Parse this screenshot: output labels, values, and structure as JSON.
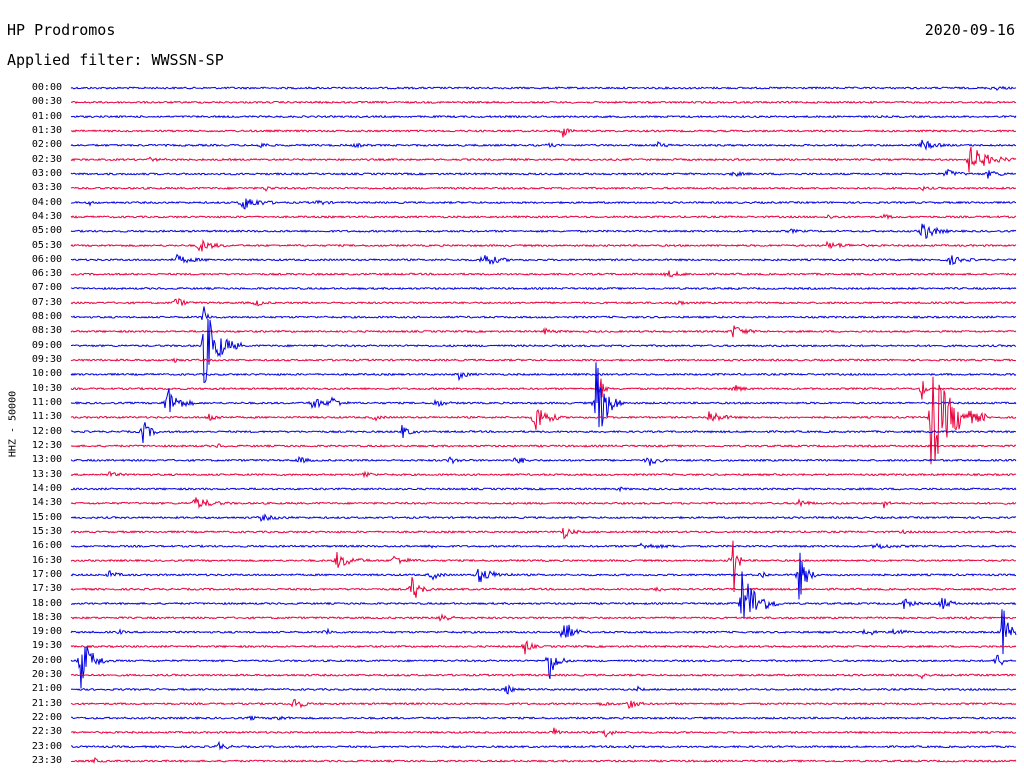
{
  "header": {
    "station": "HP Prodromos",
    "date": "2020-09-16",
    "filter": "Applied filter: WWSSN-SP"
  },
  "channel_label": "HHZ - 50000",
  "colors": {
    "blue": "#0000e0",
    "red": "#e8003c"
  },
  "rows": [
    {
      "label": "00:00",
      "events": [
        {
          "t": 0.975,
          "amp": 3,
          "dur": 0.02
        }
      ]
    },
    {
      "label": "00:30",
      "events": []
    },
    {
      "label": "01:00",
      "events": []
    },
    {
      "label": "01:30",
      "events": [
        {
          "t": 0.52,
          "amp": 7,
          "dur": 0.015
        }
      ]
    },
    {
      "label": "02:00",
      "events": [
        {
          "t": 0.2,
          "amp": 4,
          "dur": 0.015
        },
        {
          "t": 0.3,
          "amp": 2,
          "dur": 0.02
        },
        {
          "t": 0.505,
          "amp": 2,
          "dur": 0.015
        },
        {
          "t": 0.62,
          "amp": 3,
          "dur": 0.02
        },
        {
          "t": 0.9,
          "amp": 6,
          "dur": 0.03
        }
      ]
    },
    {
      "label": "02:30",
      "events": [
        {
          "t": 0.082,
          "amp": 2,
          "dur": 0.02
        },
        {
          "t": 0.95,
          "amp": 15,
          "dur": 0.05
        }
      ]
    },
    {
      "label": "03:00",
      "events": [
        {
          "t": 0.7,
          "amp": 3,
          "dur": 0.02
        },
        {
          "t": 0.925,
          "amp": 5,
          "dur": 0.03
        },
        {
          "t": 0.97,
          "amp": 4,
          "dur": 0.03
        }
      ]
    },
    {
      "label": "03:30",
      "events": [
        {
          "t": 0.205,
          "amp": 3,
          "dur": 0.015
        },
        {
          "t": 0.9,
          "amp": 2,
          "dur": 0.015
        }
      ]
    },
    {
      "label": "04:00",
      "events": [
        {
          "t": 0.02,
          "amp": 2,
          "dur": 0.01
        },
        {
          "t": 0.18,
          "amp": 9,
          "dur": 0.04
        },
        {
          "t": 0.26,
          "amp": 3,
          "dur": 0.02
        }
      ]
    },
    {
      "label": "04:30",
      "events": [
        {
          "t": 0.8,
          "amp": 2,
          "dur": 0.02
        },
        {
          "t": 0.86,
          "amp": 2,
          "dur": 0.02
        }
      ]
    },
    {
      "label": "05:00",
      "events": [
        {
          "t": 0.9,
          "amp": 12,
          "dur": 0.03
        },
        {
          "t": 0.76,
          "amp": 2,
          "dur": 0.02
        }
      ]
    },
    {
      "label": "05:30",
      "events": [
        {
          "t": 0.135,
          "amp": 8,
          "dur": 0.03
        },
        {
          "t": 0.8,
          "amp": 3,
          "dur": 0.05
        }
      ]
    },
    {
      "label": "06:00",
      "events": [
        {
          "t": 0.11,
          "amp": 5,
          "dur": 0.04
        },
        {
          "t": 0.435,
          "amp": 10,
          "dur": 0.03
        },
        {
          "t": 0.93,
          "amp": 5,
          "dur": 0.03
        }
      ]
    },
    {
      "label": "06:30",
      "events": [
        {
          "t": 0.63,
          "amp": 4,
          "dur": 0.03
        }
      ]
    },
    {
      "label": "07:00",
      "events": []
    },
    {
      "label": "07:30",
      "events": [
        {
          "t": 0.11,
          "amp": 7,
          "dur": 0.02
        },
        {
          "t": 0.195,
          "amp": 5,
          "dur": 0.015
        },
        {
          "t": 0.64,
          "amp": 4,
          "dur": 0.015
        }
      ]
    },
    {
      "label": "08:00",
      "events": [
        {
          "t": 0.14,
          "amp": 15,
          "dur": 0.01
        }
      ]
    },
    {
      "label": "08:30",
      "events": [
        {
          "t": 0.5,
          "amp": 3,
          "dur": 0.02
        },
        {
          "t": 0.7,
          "amp": 7,
          "dur": 0.03
        }
      ]
    },
    {
      "label": "09:00",
      "events": [
        {
          "t": 0.14,
          "amp": 45,
          "dur": 0.04
        }
      ]
    },
    {
      "label": "09:30",
      "events": [
        {
          "t": 0.11,
          "amp": 3,
          "dur": 0.01
        }
      ]
    },
    {
      "label": "10:00",
      "events": [
        {
          "t": 0.41,
          "amp": 5,
          "dur": 0.02
        }
      ]
    },
    {
      "label": "10:30",
      "events": [
        {
          "t": 0.56,
          "amp": 15,
          "dur": 0.01
        },
        {
          "t": 0.7,
          "amp": 5,
          "dur": 0.02
        },
        {
          "t": 0.9,
          "amp": 14,
          "dur": 0.01
        }
      ]
    },
    {
      "label": "11:00",
      "events": [
        {
          "t": 0.1,
          "amp": 22,
          "dur": 0.03
        },
        {
          "t": 0.255,
          "amp": 8,
          "dur": 0.025
        },
        {
          "t": 0.275,
          "amp": 8,
          "dur": 0.02
        },
        {
          "t": 0.385,
          "amp": 5,
          "dur": 0.02
        },
        {
          "t": 0.555,
          "amp": 50,
          "dur": 0.03
        }
      ]
    },
    {
      "label": "11:30",
      "events": [
        {
          "t": 0.145,
          "amp": 5,
          "dur": 0.02
        },
        {
          "t": 0.32,
          "amp": 4,
          "dur": 0.015
        },
        {
          "t": 0.49,
          "amp": 20,
          "dur": 0.03
        },
        {
          "t": 0.675,
          "amp": 8,
          "dur": 0.03
        },
        {
          "t": 0.91,
          "amp": 55,
          "dur": 0.06
        }
      ]
    },
    {
      "label": "12:00",
      "events": [
        {
          "t": 0.075,
          "amp": 15,
          "dur": 0.02
        },
        {
          "t": 0.35,
          "amp": 7,
          "dur": 0.02
        }
      ]
    },
    {
      "label": "12:30",
      "events": [
        {
          "t": 0.155,
          "amp": 3,
          "dur": 0.01
        }
      ]
    },
    {
      "label": "13:00",
      "events": [
        {
          "t": 0.24,
          "amp": 4,
          "dur": 0.02
        },
        {
          "t": 0.4,
          "amp": 4,
          "dur": 0.02
        },
        {
          "t": 0.47,
          "amp": 6,
          "dur": 0.02
        },
        {
          "t": 0.61,
          "amp": 8,
          "dur": 0.02
        }
      ]
    },
    {
      "label": "13:30",
      "events": [
        {
          "t": 0.04,
          "amp": 3,
          "dur": 0.02
        },
        {
          "t": 0.31,
          "amp": 5,
          "dur": 0.015
        }
      ]
    },
    {
      "label": "14:00",
      "events": [
        {
          "t": 0.58,
          "amp": 2,
          "dur": 0.01
        }
      ]
    },
    {
      "label": "14:30",
      "events": [
        {
          "t": 0.13,
          "amp": 7,
          "dur": 0.04
        },
        {
          "t": 0.77,
          "amp": 5,
          "dur": 0.02
        },
        {
          "t": 0.86,
          "amp": 5,
          "dur": 0.01
        }
      ]
    },
    {
      "label": "15:00",
      "events": [
        {
          "t": 0.2,
          "amp": 3,
          "dur": 0.04
        }
      ]
    },
    {
      "label": "15:30",
      "events": [
        {
          "t": 0.52,
          "amp": 8,
          "dur": 0.02
        },
        {
          "t": 0.88,
          "amp": 2,
          "dur": 0.01
        }
      ]
    },
    {
      "label": "16:00",
      "events": [
        {
          "t": 0.38,
          "amp": 3,
          "dur": 0.01
        },
        {
          "t": 0.6,
          "amp": 3,
          "dur": 0.05
        },
        {
          "t": 0.85,
          "amp": 3,
          "dur": 0.04
        }
      ]
    },
    {
      "label": "16:30",
      "events": [
        {
          "t": 0.28,
          "amp": 9,
          "dur": 0.04
        },
        {
          "t": 0.34,
          "amp": 6,
          "dur": 0.03
        },
        {
          "t": 0.7,
          "amp": 60,
          "dur": 0.01
        }
      ]
    },
    {
      "label": "17:00",
      "events": [
        {
          "t": 0.04,
          "amp": 4,
          "dur": 0.02
        },
        {
          "t": 0.38,
          "amp": 6,
          "dur": 0.02
        },
        {
          "t": 0.43,
          "amp": 9,
          "dur": 0.04
        },
        {
          "t": 0.73,
          "amp": 7,
          "dur": 0.01
        },
        {
          "t": 0.77,
          "amp": 28,
          "dur": 0.02
        }
      ]
    },
    {
      "label": "17:30",
      "events": [
        {
          "t": 0.36,
          "amp": 18,
          "dur": 0.02
        },
        {
          "t": 0.62,
          "amp": 4,
          "dur": 0.01
        }
      ]
    },
    {
      "label": "18:00",
      "events": [
        {
          "t": 0.71,
          "amp": 40,
          "dur": 0.04
        },
        {
          "t": 0.88,
          "amp": 7,
          "dur": 0.02
        },
        {
          "t": 0.92,
          "amp": 10,
          "dur": 0.02
        }
      ]
    },
    {
      "label": "18:30",
      "events": [
        {
          "t": 0.39,
          "amp": 7,
          "dur": 0.02
        },
        {
          "t": 0.95,
          "amp": 3,
          "dur": 0.01
        }
      ]
    },
    {
      "label": "19:00",
      "events": [
        {
          "t": 0.05,
          "amp": 3,
          "dur": 0.01
        },
        {
          "t": 0.27,
          "amp": 7,
          "dur": 0.01
        },
        {
          "t": 0.52,
          "amp": 20,
          "dur": 0.02
        },
        {
          "t": 0.84,
          "amp": 6,
          "dur": 0.02
        },
        {
          "t": 0.87,
          "amp": 7,
          "dur": 0.02
        },
        {
          "t": 0.985,
          "amp": 30,
          "dur": 0.02
        }
      ]
    },
    {
      "label": "19:30",
      "events": [
        {
          "t": 0.48,
          "amp": 9,
          "dur": 0.015
        }
      ]
    },
    {
      "label": "20:00",
      "events": [
        {
          "t": 0.01,
          "amp": 30,
          "dur": 0.03
        },
        {
          "t": 0.505,
          "amp": 25,
          "dur": 0.02
        },
        {
          "t": 0.98,
          "amp": 20,
          "dur": 0.01
        }
      ]
    },
    {
      "label": "20:30",
      "events": [
        {
          "t": 0.9,
          "amp": 3,
          "dur": 0.01
        }
      ]
    },
    {
      "label": "21:00",
      "events": [
        {
          "t": 0.46,
          "amp": 6,
          "dur": 0.015
        },
        {
          "t": 0.6,
          "amp": 2,
          "dur": 0.01
        }
      ]
    },
    {
      "label": "21:30",
      "events": [
        {
          "t": 0.235,
          "amp": 10,
          "dur": 0.02
        },
        {
          "t": 0.56,
          "amp": 3,
          "dur": 0.02
        },
        {
          "t": 0.59,
          "amp": 6,
          "dur": 0.02
        }
      ]
    },
    {
      "label": "22:00",
      "events": [
        {
          "t": 0.19,
          "amp": 3,
          "dur": 0.01
        },
        {
          "t": 0.215,
          "amp": 4,
          "dur": 0.02
        }
      ]
    },
    {
      "label": "22:30",
      "events": [
        {
          "t": 0.51,
          "amp": 5,
          "dur": 0.02
        },
        {
          "t": 0.565,
          "amp": 7,
          "dur": 0.015
        }
      ]
    },
    {
      "label": "23:00",
      "events": [
        {
          "t": 0.155,
          "amp": 5,
          "dur": 0.02
        },
        {
          "t": 0.59,
          "amp": 4,
          "dur": 0.01
        }
      ]
    },
    {
      "label": "23:30",
      "events": [
        {
          "t": 0.025,
          "amp": 3,
          "dur": 0.01
        }
      ]
    }
  ]
}
